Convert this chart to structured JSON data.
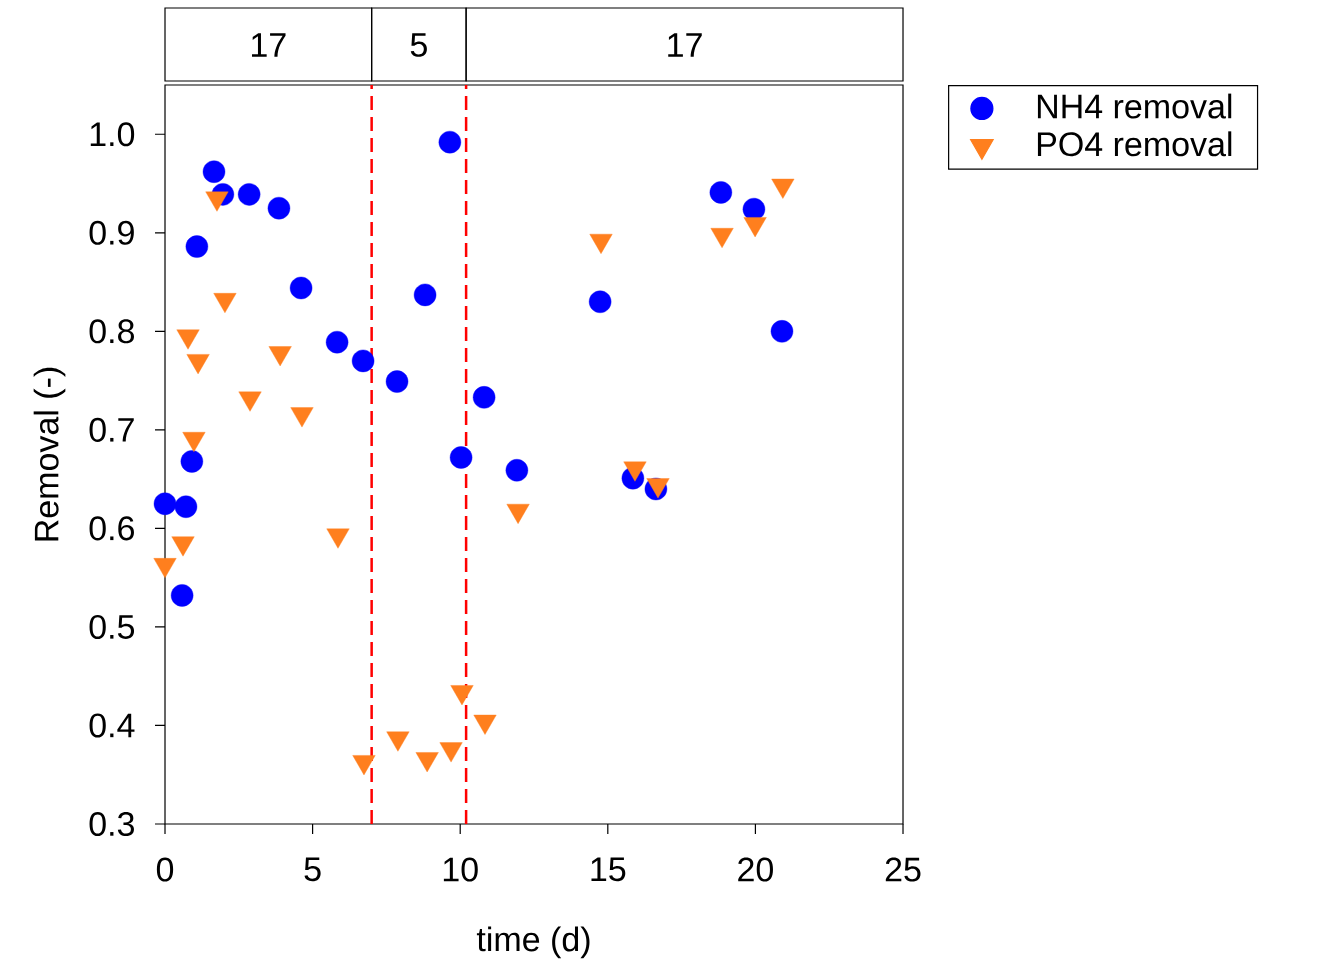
{
  "chart_data": {
    "type": "scatter",
    "xlabel": "time (d)",
    "ylabel": "Removal (-)",
    "xlim": [
      0,
      25
    ],
    "ylim": [
      0.3,
      1.05
    ],
    "xticks": [
      0,
      5,
      10,
      15,
      20,
      25
    ],
    "yticks": [
      0.3,
      0.4,
      0.5,
      0.6,
      0.7,
      0.8,
      0.9,
      {
        "value": 1.0,
        "label": "1.0"
      }
    ],
    "legend": "top right",
    "series": [
      {
        "name": "NH4 removal",
        "color": "#0000ff",
        "marker": "circle",
        "x": [
          0,
          0.58,
          0.71,
          0.91,
          1.08,
          1.66,
          1.96,
          2.85,
          3.86,
          4.61,
          5.83,
          6.71,
          7.86,
          8.81,
          9.65,
          10.03,
          10.81,
          11.92,
          14.74,
          15.85,
          16.63,
          18.83,
          19.95,
          20.9
        ],
        "values": [
          0.625,
          0.532,
          0.622,
          0.668,
          0.886,
          0.962,
          0.939,
          0.939,
          0.925,
          0.844,
          0.789,
          0.77,
          0.749,
          0.837,
          0.992,
          0.672,
          0.733,
          0.659,
          0.83,
          0.651,
          0.64,
          0.941,
          0.924,
          0.8
        ]
      },
      {
        "name": "PO4 removal",
        "color": "#ff7f1e",
        "marker": "triangle",
        "x": [
          0,
          0.61,
          0.78,
          0.98,
          1.12,
          1.76,
          2.03,
          2.88,
          3.9,
          4.64,
          5.86,
          6.74,
          7.89,
          8.88,
          9.69,
          10.06,
          10.84,
          11.96,
          14.77,
          15.92,
          16.7,
          18.87,
          19.99,
          20.93
        ],
        "values": [
          0.563,
          0.585,
          0.795,
          0.691,
          0.77,
          0.935,
          0.832,
          0.732,
          0.778,
          0.716,
          0.593,
          0.363,
          0.387,
          0.366,
          0.376,
          0.434,
          0.404,
          0.618,
          0.892,
          0.661,
          0.644,
          0.898,
          0.909,
          0.948
        ]
      }
    ],
    "ref_lines": [
      {
        "axis": "x",
        "value": 7,
        "color": "#ff0000",
        "line_style": "dashed"
      },
      {
        "axis": "x",
        "value": 10.2,
        "color": "#ff0000",
        "line_style": "dashed"
      }
    ],
    "annotations": [
      "17",
      "5",
      "17"
    ]
  }
}
